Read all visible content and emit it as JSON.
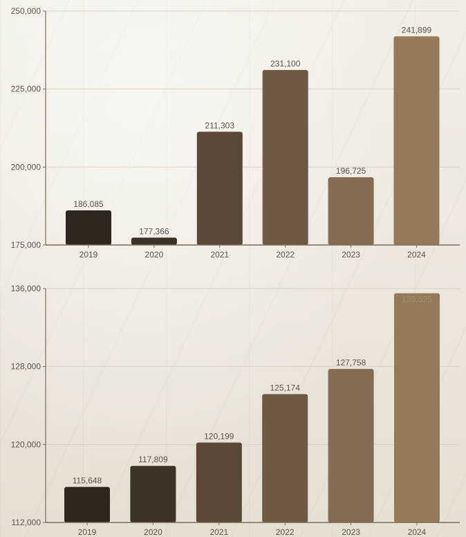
{
  "chart_data": [
    {
      "type": "bar",
      "categories": [
        "2019",
        "2020",
        "2021",
        "2022",
        "2023",
        "2024"
      ],
      "values": [
        186085,
        177366,
        211303,
        231100,
        196725,
        241899
      ],
      "value_labels": [
        "186,085",
        "177,366",
        "211,303",
        "231,100",
        "196,725",
        "241,899"
      ],
      "ylim": [
        175000,
        250000
      ],
      "yticks": [
        175000,
        200000,
        225000,
        250000
      ],
      "ytick_labels": [
        "175,000",
        "200,000",
        "225,000",
        "250,000"
      ],
      "colors": [
        "#2e271c",
        "#3c3226",
        "#584838",
        "#6e5a43",
        "#856b51",
        "#957a5a"
      ],
      "grid": true
    },
    {
      "type": "bar",
      "categories": [
        "2019",
        "2020",
        "2021",
        "2022",
        "2023",
        "2024"
      ],
      "values": [
        115648,
        117809,
        120199,
        125174,
        127758,
        135525
      ],
      "value_labels": [
        "115,648",
        "117,809",
        "120,199",
        "125,174",
        "127,758",
        "135,525"
      ],
      "ylim": [
        112000,
        136000
      ],
      "yticks": [
        112000,
        120000,
        128000,
        136000
      ],
      "ytick_labels": [
        "112,000",
        "120,000",
        "128,000",
        "136,000"
      ],
      "colors": [
        "#2e271c",
        "#3c3226",
        "#584838",
        "#6e5a43",
        "#856b51",
        "#957a5a"
      ],
      "grid": true
    }
  ]
}
